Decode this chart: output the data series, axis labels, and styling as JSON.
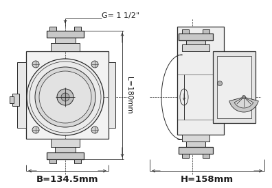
{
  "bg_color": "#ffffff",
  "line_color": "#2a2a2a",
  "dark_color": "#1a1a1a",
  "label_G": "G= 1 1/2\"",
  "label_L": "L=180mm",
  "label_B": "B=134.5mm",
  "label_H": "H=158mm",
  "fig_width": 3.96,
  "fig_height": 2.75,
  "dpi": 100
}
